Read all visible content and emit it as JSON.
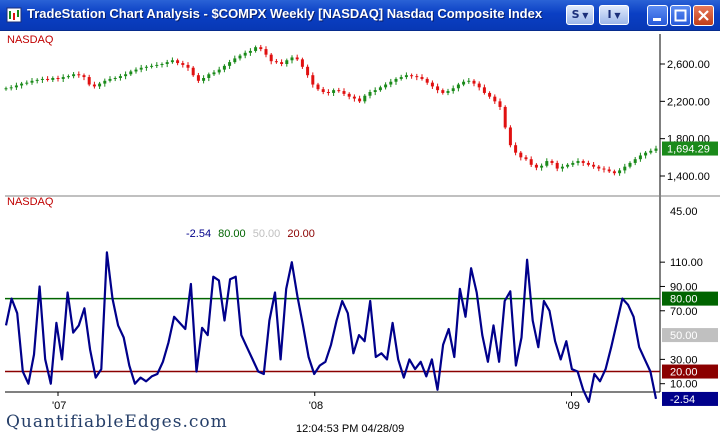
{
  "window": {
    "title": "TradeStation Chart Analysis - $COMPX Weekly [NASDAQ] Nasdaq Composite Index",
    "s_button": "S",
    "i_button": "I"
  },
  "colors": {
    "up": "#1a8a1a",
    "down": "#e01010",
    "indicator": "#00008b",
    "line80": "#006400",
    "line20": "#8b0000",
    "tag_value": "#00008b",
    "tag_80": "#006400",
    "tag_50": "#c0c0c0",
    "tag_20": "#8b0000"
  },
  "price_pane": {
    "label": "NASDAQ",
    "y_ticks": [
      "2,600.00",
      "2,200.00",
      "1,800.00",
      "1,400.00"
    ],
    "last_value": "1,694.29"
  },
  "indicator_pane": {
    "label": "NASDAQ",
    "legend": [
      {
        "text": "-2.54",
        "color": "#00008b"
      },
      {
        "text": "80.00",
        "color": "#006400"
      },
      {
        "text": "50.00",
        "color": "#c0c0c0"
      },
      {
        "text": "20.00",
        "color": "#8b0000"
      }
    ],
    "top_tick": "45.00",
    "y_ticks": [
      "110.00",
      "90.00",
      "70.00",
      "30.00",
      "10.00"
    ],
    "tags": [
      "80.00",
      "50.00",
      "20.00",
      "-2.54"
    ]
  },
  "x_axis": {
    "labels": [
      "'07",
      "'08",
      "'09"
    ]
  },
  "status_time": "12:04:53 PM 04/28/09",
  "watermark": "QuantifiableEdges.com",
  "chart_data": [
    {
      "type": "candlestick",
      "title": "NASDAQ",
      "interval": "Weekly",
      "ylim": [
        1250,
        2900
      ],
      "y_ticks": [
        2600,
        2200,
        1800,
        1400
      ],
      "last": 1694.29,
      "closes": [
        2340,
        2350,
        2370,
        2390,
        2400,
        2420,
        2430,
        2440,
        2430,
        2450,
        2440,
        2460,
        2470,
        2490,
        2480,
        2460,
        2380,
        2360,
        2390,
        2420,
        2440,
        2450,
        2470,
        2490,
        2520,
        2540,
        2560,
        2570,
        2580,
        2590,
        2600,
        2620,
        2640,
        2610,
        2590,
        2560,
        2480,
        2420,
        2450,
        2490,
        2510,
        2540,
        2580,
        2620,
        2660,
        2690,
        2720,
        2740,
        2780,
        2760,
        2700,
        2630,
        2620,
        2600,
        2640,
        2670,
        2650,
        2570,
        2480,
        2380,
        2330,
        2300,
        2290,
        2320,
        2310,
        2280,
        2250,
        2230,
        2200,
        2260,
        2300,
        2320,
        2350,
        2380,
        2410,
        2440,
        2460,
        2480,
        2470,
        2460,
        2440,
        2400,
        2360,
        2320,
        2290,
        2310,
        2340,
        2380,
        2410,
        2420,
        2390,
        2350,
        2290,
        2250,
        2200,
        2140,
        1920,
        1730,
        1650,
        1600,
        1580,
        1520,
        1490,
        1510,
        1560,
        1540,
        1480,
        1500,
        1520,
        1540,
        1560,
        1540,
        1520,
        1500,
        1480,
        1470,
        1450,
        1430,
        1460,
        1500,
        1540,
        1580,
        1620,
        1650,
        1670,
        1694
      ],
      "x_labels": [
        "'07",
        "'08",
        "'09"
      ]
    },
    {
      "type": "line",
      "title": "NASDAQ",
      "ylim": [
        -10,
        120
      ],
      "y_ticks": [
        110,
        90,
        70,
        30,
        10
      ],
      "levels": [
        80,
        50,
        20
      ],
      "last": -2.54,
      "values": [
        58,
        80,
        68,
        20,
        10,
        34,
        90,
        30,
        10,
        60,
        30,
        85,
        52,
        58,
        72,
        38,
        15,
        22,
        118,
        80,
        58,
        48,
        25,
        10,
        15,
        12,
        16,
        18,
        28,
        44,
        65,
        60,
        55,
        92,
        20,
        56,
        50,
        98,
        95,
        62,
        96,
        98,
        50,
        40,
        30,
        20,
        18,
        62,
        85,
        30,
        88,
        110,
        82,
        58,
        32,
        18,
        25,
        28,
        42,
        62,
        78,
        68,
        35,
        50,
        45,
        78,
        32,
        35,
        30,
        60,
        30,
        15,
        30,
        22,
        28,
        16,
        30,
        5,
        42,
        55,
        32,
        88,
        65,
        105,
        85,
        50,
        28,
        58,
        28,
        78,
        86,
        25,
        48,
        112,
        62,
        40,
        78,
        70,
        45,
        30,
        45,
        22,
        20,
        5,
        -5,
        18,
        12,
        22,
        40,
        60,
        80,
        75,
        65,
        40,
        30,
        20,
        -2.54
      ],
      "x_labels": [
        "'07",
        "'08",
        "'09"
      ]
    }
  ]
}
